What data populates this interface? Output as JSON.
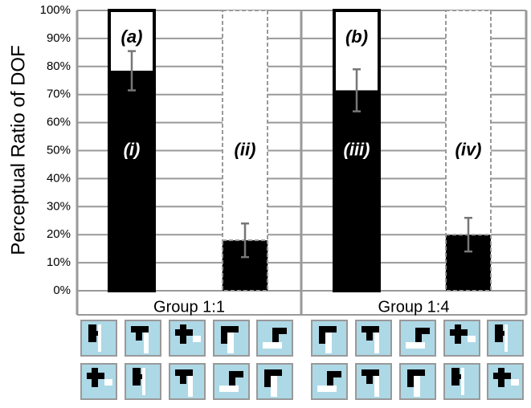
{
  "chart_data": {
    "type": "bar",
    "ylabel": "Perceptual Ratio of DOF",
    "categories": [
      "(i)",
      "(ii)",
      "(iii)",
      "(iv)"
    ],
    "values": [
      78.5,
      18,
      71.5,
      20
    ],
    "errors": [
      7,
      6,
      7.5,
      6
    ],
    "outline": [
      "solid",
      "dashed",
      "solid",
      "dashed"
    ],
    "color": "#000000",
    "groups": [
      "Group 1:1",
      "Group 1:4"
    ],
    "annotations": [
      "(a)",
      "(b)"
    ],
    "ylim": [
      0,
      100
    ],
    "yticks": [
      {
        "value": 0,
        "label": "0%"
      },
      {
        "value": 10,
        "label": "10%"
      },
      {
        "value": 20,
        "label": "20%"
      },
      {
        "value": 30,
        "label": "30%"
      },
      {
        "value": 40,
        "label": "40%"
      },
      {
        "value": 50,
        "label": "50%"
      },
      {
        "value": 60,
        "label": "60%"
      },
      {
        "value": 70,
        "label": "70%"
      },
      {
        "value": 80,
        "label": "80%"
      },
      {
        "value": 90,
        "label": "90%"
      },
      {
        "value": 100,
        "label": "100%"
      }
    ],
    "grid": true
  }
}
